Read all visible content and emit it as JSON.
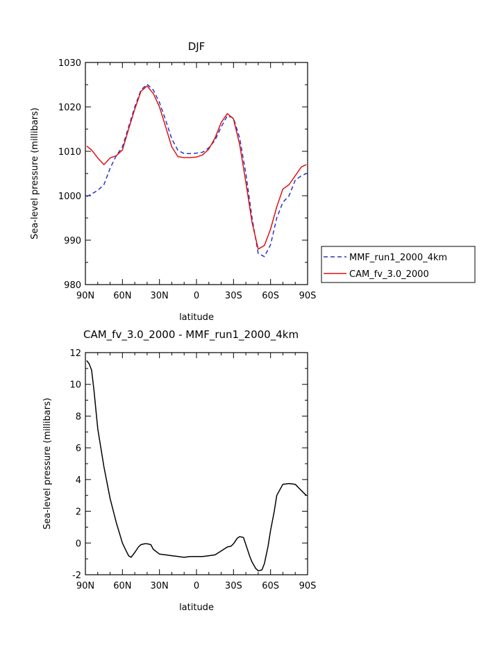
{
  "chart_data": [
    {
      "type": "line",
      "title": "DJF",
      "xlabel": "latitude",
      "ylabel": "Sea-level pressure (millibars)",
      "xlim": [
        90,
        -90
      ],
      "ylim": [
        980,
        1030
      ],
      "x_tick_values": [
        90,
        60,
        30,
        0,
        -30,
        -60,
        -90
      ],
      "x_tick_labels": [
        "90N",
        "60N",
        "30N",
        "0",
        "30S",
        "60S",
        "90S"
      ],
      "y_ticks": [
        980,
        990,
        1000,
        1010,
        1020,
        1030
      ],
      "grid": false,
      "legend_position": "right",
      "series": [
        {
          "name": "MMF_run1_2000_4km",
          "color": "#2233cc",
          "dash": "dashed",
          "x": [
            89,
            85,
            80,
            75,
            70,
            65,
            60,
            55,
            50,
            45,
            40,
            35,
            30,
            25,
            20,
            15,
            10,
            5,
            0,
            -5,
            -10,
            -15,
            -20,
            -25,
            -30,
            -35,
            -40,
            -45,
            -50,
            -55,
            -60,
            -65,
            -70,
            -75,
            -80,
            -85,
            -89
          ],
          "y": [
            999.8,
            1000.4,
            1001.2,
            1002.5,
            1006.2,
            1009.0,
            1011.0,
            1015.5,
            1020.0,
            1023.8,
            1025.1,
            1023.8,
            1021.0,
            1017.0,
            1012.8,
            1010.2,
            1009.5,
            1009.5,
            1009.6,
            1009.8,
            1010.8,
            1012.5,
            1015.5,
            1018.0,
            1017.5,
            1013.0,
            1005.0,
            995.0,
            987.0,
            986.3,
            989.0,
            995.0,
            998.5,
            1000.0,
            1003.5,
            1004.5,
            1005.0
          ]
        },
        {
          "name": "CAM_fv_3.0_2000",
          "color": "#dd1111",
          "dash": "solid",
          "x": [
            89,
            85,
            80,
            75,
            70,
            65,
            60,
            55,
            50,
            45,
            40,
            35,
            30,
            25,
            20,
            15,
            10,
            5,
            0,
            -5,
            -10,
            -15,
            -20,
            -25,
            -30,
            -35,
            -40,
            -45,
            -50,
            -55,
            -60,
            -65,
            -70,
            -75,
            -80,
            -85,
            -89
          ],
          "y": [
            1011.2,
            1010.3,
            1008.5,
            1007.0,
            1008.5,
            1009.0,
            1010.3,
            1015.0,
            1019.5,
            1023.5,
            1024.7,
            1023.0,
            1020.0,
            1015.5,
            1011.0,
            1008.8,
            1008.6,
            1008.6,
            1008.7,
            1009.2,
            1010.5,
            1013.0,
            1016.5,
            1018.5,
            1017.3,
            1011.5,
            1003.0,
            994.0,
            988.0,
            988.8,
            992.5,
            997.5,
            1001.5,
            1002.5,
            1004.5,
            1006.5,
            1007.0
          ]
        }
      ]
    },
    {
      "type": "line",
      "title": "CAM_fv_3.0_2000 - MMF_run1_2000_4km",
      "xlabel": "latitude",
      "ylabel": "Sea-level pressure (millibars)",
      "xlim": [
        90,
        -90
      ],
      "ylim": [
        -2,
        12
      ],
      "x_tick_values": [
        90,
        60,
        30,
        0,
        -30,
        -60,
        -90
      ],
      "x_tick_labels": [
        "90N",
        "60N",
        "30N",
        "0",
        "30S",
        "60S",
        "90S"
      ],
      "y_ticks": [
        -2,
        0,
        2,
        4,
        6,
        8,
        10,
        12
      ],
      "grid": false,
      "series": [
        {
          "color": "#000000",
          "dash": "solid",
          "x": [
            89,
            87,
            85,
            83,
            80,
            75,
            70,
            65,
            60,
            57,
            55,
            53,
            50,
            47,
            45,
            42,
            40,
            37,
            35,
            30,
            25,
            20,
            15,
            10,
            5,
            0,
            -5,
            -10,
            -15,
            -20,
            -25,
            -28,
            -30,
            -33,
            -35,
            -38,
            -40,
            -43,
            -45,
            -48,
            -50,
            -53,
            -55,
            -58,
            -60,
            -63,
            -65,
            -70,
            -75,
            -80,
            -85,
            -89
          ],
          "y": [
            11.5,
            11.3,
            10.9,
            9.6,
            7.2,
            4.8,
            2.8,
            1.3,
            0.0,
            -0.5,
            -0.8,
            -0.9,
            -0.6,
            -0.25,
            -0.1,
            -0.05,
            -0.05,
            -0.1,
            -0.4,
            -0.7,
            -0.75,
            -0.8,
            -0.85,
            -0.9,
            -0.85,
            -0.85,
            -0.85,
            -0.8,
            -0.75,
            -0.5,
            -0.25,
            -0.2,
            -0.05,
            0.3,
            0.4,
            0.35,
            -0.1,
            -0.8,
            -1.2,
            -1.6,
            -1.75,
            -1.7,
            -1.3,
            -0.2,
            0.8,
            2.0,
            3.0,
            3.7,
            3.75,
            3.7,
            3.3,
            3.0
          ]
        }
      ]
    }
  ]
}
